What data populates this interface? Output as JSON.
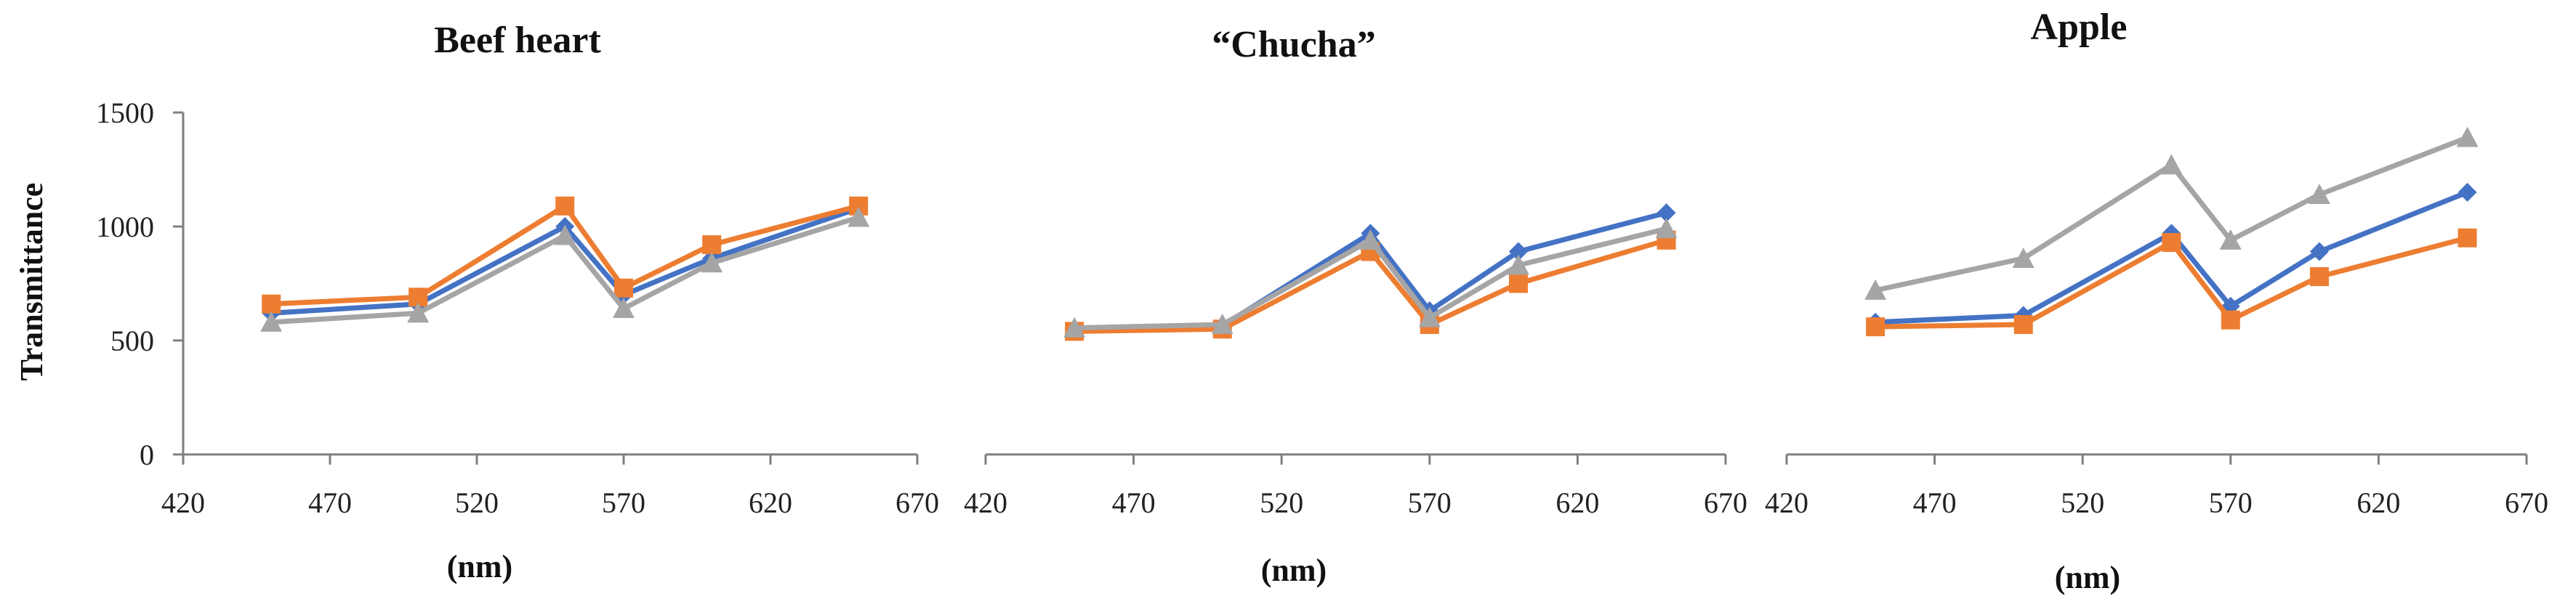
{
  "chart_data": [
    {
      "type": "line",
      "title": "Beef heart",
      "xlabel": "(nm)",
      "ylabel": "Transmittance",
      "xlim": [
        420,
        670
      ],
      "ylim": [
        0,
        1500
      ],
      "xticks": [
        420,
        470,
        520,
        570,
        620,
        670
      ],
      "yticks": [
        0,
        500,
        1000,
        1500
      ],
      "x": [
        450,
        500,
        550,
        570,
        600,
        650
      ],
      "series": [
        {
          "color": "#4472C4",
          "marker": "diamond",
          "values": [
            620,
            660,
            1000,
            700,
            860,
            1080
          ]
        },
        {
          "color": "#ED7D31",
          "marker": "square",
          "values": [
            660,
            690,
            1090,
            730,
            920,
            1090
          ]
        },
        {
          "color": "#A5A5A5",
          "marker": "triangle",
          "values": [
            580,
            620,
            960,
            640,
            840,
            1040
          ]
        }
      ]
    },
    {
      "type": "line",
      "title": "“Chucha”",
      "xlabel": "(nm)",
      "ylabel": "",
      "xlim": [
        420,
        670
      ],
      "ylim": [
        0,
        1500
      ],
      "xticks": [
        420,
        470,
        520,
        570,
        620,
        670
      ],
      "yticks": [],
      "x": [
        450,
        500,
        550,
        570,
        600,
        650
      ],
      "series": [
        {
          "color": "#4472C4",
          "marker": "diamond",
          "values": [
            550,
            565,
            970,
            630,
            890,
            1060
          ]
        },
        {
          "color": "#ED7D31",
          "marker": "square",
          "values": [
            540,
            550,
            890,
            570,
            750,
            940
          ]
        },
        {
          "color": "#A5A5A5",
          "marker": "triangle",
          "values": [
            555,
            570,
            940,
            600,
            830,
            990
          ]
        }
      ]
    },
    {
      "type": "line",
      "title": "Apple",
      "xlabel": "(nm)",
      "ylabel": "",
      "xlim": [
        420,
        670
      ],
      "ylim": [
        0,
        1500
      ],
      "xticks": [
        420,
        470,
        520,
        570,
        620,
        670
      ],
      "yticks": [],
      "x": [
        450,
        500,
        550,
        570,
        600,
        650
      ],
      "series": [
        {
          "color": "#4472C4",
          "marker": "diamond",
          "values": [
            580,
            610,
            970,
            650,
            890,
            1150
          ]
        },
        {
          "color": "#ED7D31",
          "marker": "square",
          "values": [
            560,
            570,
            930,
            590,
            780,
            950
          ]
        },
        {
          "color": "#A5A5A5",
          "marker": "triangle",
          "values": [
            720,
            860,
            1270,
            940,
            1140,
            1390
          ]
        }
      ]
    }
  ]
}
